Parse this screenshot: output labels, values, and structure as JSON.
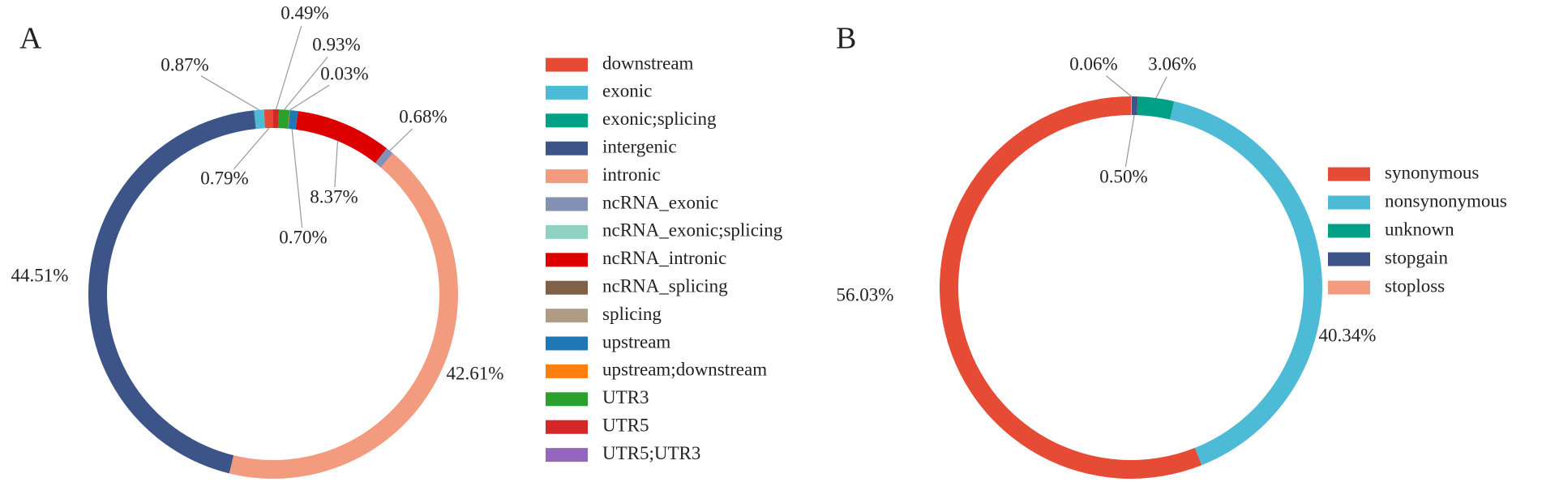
{
  "chart_data": [
    {
      "type": "pie",
      "panel_label": "A",
      "categories": [
        "downstream",
        "exonic",
        "exonic;splicing",
        "intergenic",
        "intronic",
        "ncRNA_exonic",
        "ncRNA_exonic;splicing",
        "ncRNA_intronic",
        "ncRNA_splicing",
        "splicing",
        "upstream",
        "upstream;downstream",
        "UTR3",
        "UTR5",
        "UTR5;UTR3"
      ],
      "values": [
        0.79,
        0.87,
        0,
        44.51,
        42.61,
        0.68,
        0,
        8.37,
        0,
        0,
        0.7,
        0.03,
        0.93,
        0.49,
        0
      ],
      "value_labels": [
        "0.79%",
        "0.87%",
        null,
        "44.51%",
        "42.61%",
        "0.68%",
        null,
        "8.37%",
        null,
        null,
        "0.70%",
        "0.03%",
        "0.93%",
        "0.49%",
        null
      ],
      "colors": [
        "#e64b35",
        "#4dbbd5",
        "#00a087",
        "#3c5488",
        "#f39b7f",
        "#8491b4",
        "#91d1c2",
        "#dc0000",
        "#7e6148",
        "#b09c85",
        "#1f77b4",
        "#ff7f0e",
        "#2ca02c",
        "#d62728",
        "#9467bd"
      ]
    },
    {
      "type": "pie",
      "panel_label": "B",
      "categories": [
        "synonymous",
        "nonsynonymous",
        "unknown",
        "stopgain",
        "stoploss"
      ],
      "values": [
        56.03,
        40.34,
        3.06,
        0.5,
        0.06
      ],
      "value_labels": [
        "56.03%",
        "40.34%",
        "3.06%",
        "0.50%",
        "0.06%"
      ],
      "colors": [
        "#e64b35",
        "#4dbbd5",
        "#00a087",
        "#3c5488",
        "#f39b7f"
      ]
    }
  ]
}
